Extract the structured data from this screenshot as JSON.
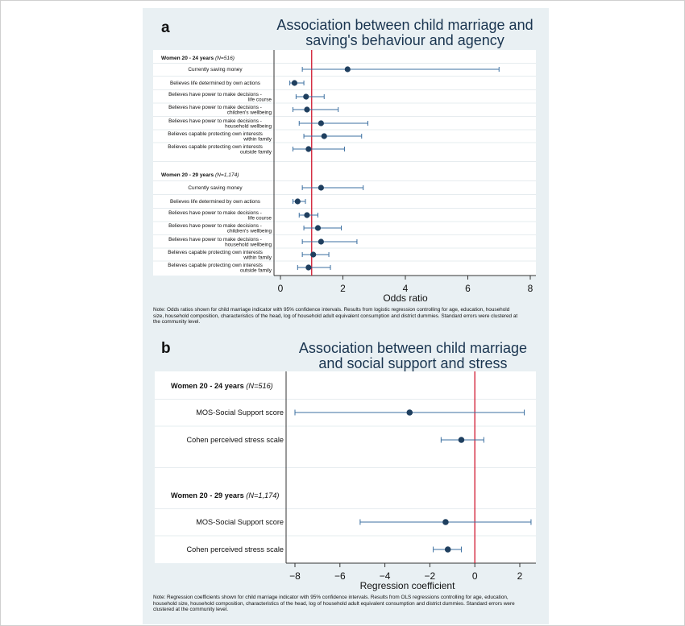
{
  "panels": [
    {
      "letter": "a",
      "title_line1": "Association between child marriage and",
      "title_line2": "saving's behaviour and agency",
      "note": "Note: Odds ratios shown for child marriage indicator with 95% confidence intervals. Results from logistic regression controlling for age, education, household size, household composition, characteristics of the head, log of household adult equivalent consumption and district dummies. Standard errors were clustered at the community level."
    },
    {
      "letter": "b",
      "title_line1": "Association between child marriage",
      "title_line2": "and social support and stress",
      "note": "Note: Regression coefficients shown for child marriage indicator with 95% confidence intervals. Results from OLS regressions controlling for age, education, household size, household composition, characteristics of the head, log of household adult equivalent consumption and district dummies. Standard errors were clustered at the community level."
    }
  ],
  "chart_data": [
    {
      "type": "scatter",
      "title": "Association between child marriage and saving's behaviour and agency",
      "xlabel": "Odds ratio",
      "xlim": [
        -0.2,
        8.2
      ],
      "xticks": [
        0,
        2,
        4,
        6,
        8
      ],
      "reference_line": 1,
      "reference_color": "#d0182f",
      "marker_color": "#1f3f5f",
      "ci_color": "#3b6fa0",
      "groups": [
        {
          "label": "Women 20 - 24 years",
          "n": "(N=516)",
          "rows": [
            {
              "label": [
                "Currently saving money"
              ],
              "estimate": 2.15,
              "ci": [
                0.7,
                7.0
              ]
            },
            {
              "label": [
                "Believes life determined by own actions"
              ],
              "estimate": 0.45,
              "ci": [
                0.3,
                0.75
              ]
            },
            {
              "label": [
                "Believes have power to make decisions -",
                "life course"
              ],
              "estimate": 0.82,
              "ci": [
                0.5,
                1.4
              ]
            },
            {
              "label": [
                "Believes have power to make decisions -",
                "children's wellbeing"
              ],
              "estimate": 0.85,
              "ci": [
                0.4,
                1.85
              ]
            },
            {
              "label": [
                "Believes have power to make decisions -",
                "household wellbeing"
              ],
              "estimate": 1.3,
              "ci": [
                0.6,
                2.8
              ]
            },
            {
              "label": [
                "Believes capable protecting own interests",
                "within family"
              ],
              "estimate": 1.4,
              "ci": [
                0.75,
                2.6
              ]
            },
            {
              "label": [
                "Believes capable protecting own interests",
                "outside family"
              ],
              "estimate": 0.9,
              "ci": [
                0.4,
                2.05
              ]
            }
          ]
        },
        {
          "label": "Women 20 - 29 years",
          "n": "(N=1,174)",
          "rows": [
            {
              "label": [
                "Currently saving money"
              ],
              "estimate": 1.3,
              "ci": [
                0.7,
                2.65
              ]
            },
            {
              "label": [
                "Believes life determined by own actions"
              ],
              "estimate": 0.55,
              "ci": [
                0.4,
                0.8
              ]
            },
            {
              "label": [
                "Believes have power to make decisions -",
                "life course"
              ],
              "estimate": 0.85,
              "ci": [
                0.6,
                1.2
              ]
            },
            {
              "label": [
                "Believes have power to make decisions -",
                "children's wellbeing"
              ],
              "estimate": 1.2,
              "ci": [
                0.75,
                1.95
              ]
            },
            {
              "label": [
                "Believes have power to make decisions -",
                "household wellbeing"
              ],
              "estimate": 1.3,
              "ci": [
                0.7,
                2.45
              ]
            },
            {
              "label": [
                "Believes capable protecting own interests",
                "within family"
              ],
              "estimate": 1.05,
              "ci": [
                0.7,
                1.55
              ]
            },
            {
              "label": [
                "Believes capable protecting own interests",
                "outside family"
              ],
              "estimate": 0.9,
              "ci": [
                0.55,
                1.6
              ]
            }
          ]
        }
      ]
    },
    {
      "type": "scatter",
      "title": "Association between child marriage and social support and stress",
      "xlabel": "Regression coefficient",
      "xlim": [
        -8.4,
        2.9
      ],
      "xticks": [
        -8,
        -6,
        -4,
        -2,
        0,
        2
      ],
      "reference_line": 0,
      "reference_color": "#d0182f",
      "marker_color": "#1f3f5f",
      "ci_color": "#3b6fa0",
      "groups": [
        {
          "label": "Women 20 - 24 years",
          "n": "(N=516)",
          "rows": [
            {
              "label": [
                "MOS-Social Support score"
              ],
              "estimate": -2.9,
              "ci": [
                -8.0,
                2.2
              ]
            },
            {
              "label": [
                "Cohen perceived stress scale"
              ],
              "estimate": -0.6,
              "ci": [
                -1.5,
                0.4
              ]
            }
          ]
        },
        {
          "label": "Women 20 - 29 years",
          "n": "(N=1,174)",
          "rows": [
            {
              "label": [
                "MOS-Social Support score"
              ],
              "estimate": -1.3,
              "ci": [
                -5.1,
                2.5
              ]
            },
            {
              "label": [
                "Cohen perceived stress scale"
              ],
              "estimate": -1.2,
              "ci": [
                -1.85,
                -0.6
              ]
            }
          ]
        }
      ]
    }
  ]
}
